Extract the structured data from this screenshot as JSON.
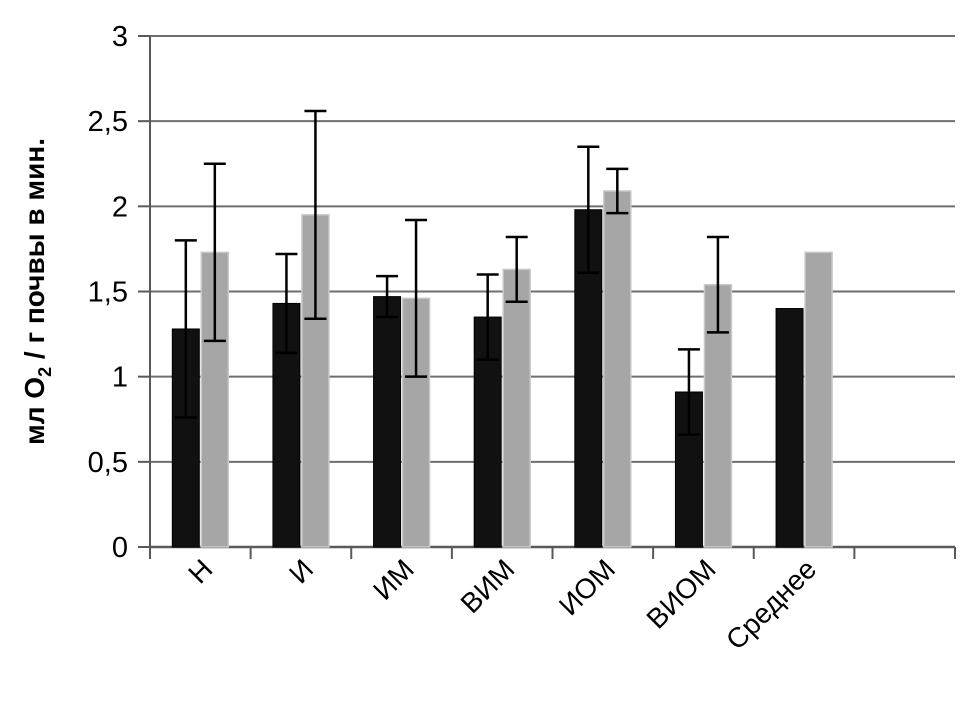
{
  "chart_data": {
    "type": "bar",
    "title": "",
    "ylabel": "мл О₂ / г почвы в мин.",
    "ylabel_parts": {
      "prefix": "мл О",
      "subscript": "2",
      "suffix": " / г почвы в мин."
    },
    "categories": [
      "Н",
      "И",
      "ИМ",
      "ВИМ",
      "ИОМ",
      "ВИОМ",
      "Среднее"
    ],
    "series": [
      {
        "name": "black-bars",
        "color": "#111111",
        "edge": "#000000",
        "values": [
          1.28,
          1.43,
          1.47,
          1.35,
          1.98,
          0.91,
          1.4
        ],
        "errors": [
          0.52,
          0.29,
          0.12,
          0.25,
          0.37,
          0.25,
          null
        ]
      },
      {
        "name": "gray-bars",
        "color": "#a6a6a6",
        "edge": "#c8c8c8",
        "values": [
          1.73,
          1.95,
          1.46,
          1.63,
          2.09,
          1.54,
          1.73
        ],
        "errors": [
          0.52,
          0.61,
          0.46,
          0.19,
          0.13,
          0.28,
          null
        ]
      }
    ],
    "ylim": [
      0,
      3
    ],
    "ytick_step": 0.5,
    "ytick_labels": [
      "0",
      "0,5",
      "1",
      "1,5",
      "2",
      "2,5",
      "3"
    ],
    "grid": true,
    "legend": "none",
    "x_slots": 8,
    "error_bar_color": "#000000"
  },
  "colors": {
    "background": "#ffffff",
    "gridline": "#6e6e6e",
    "axis": "#595959",
    "text": "#000000"
  }
}
